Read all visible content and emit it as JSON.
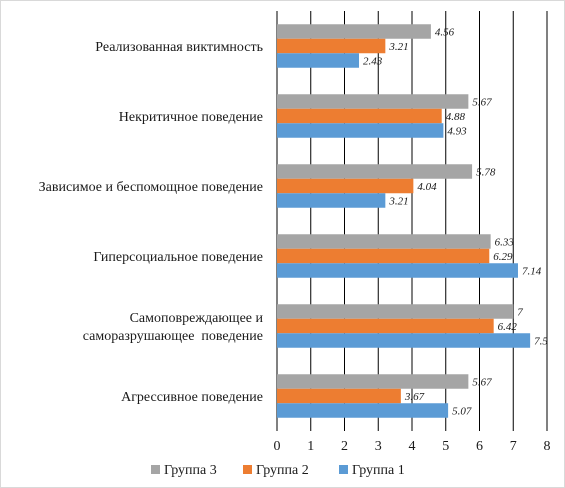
{
  "chart_data": {
    "type": "bar",
    "orientation": "horizontal",
    "title": "",
    "xlabel": "",
    "ylabel": "",
    "xlim": [
      0,
      8
    ],
    "xticks": [
      0,
      1,
      2,
      3,
      4,
      5,
      6,
      7,
      8
    ],
    "grid": "vertical-major",
    "legend_position": "bottom",
    "categories": [
      [
        "Реализованная виктимность"
      ],
      [
        "Некритичное поведение"
      ],
      [
        "Зависимое и беспомощное поведение"
      ],
      [
        "Гиперсоциальное поведение"
      ],
      [
        "Самоповреждающее и",
        "саморазрушающее  поведение"
      ],
      [
        "Агрессивное поведение"
      ]
    ],
    "series": [
      {
        "name": "Группа 3",
        "color": "#a5a5a5",
        "values": [
          4.56,
          5.67,
          5.78,
          6.33,
          7,
          5.67
        ],
        "labels": [
          "4.56",
          "5.67",
          "5.78",
          "6.33",
          "7",
          "5.67"
        ]
      },
      {
        "name": "Группа 2",
        "color": "#ed7d31",
        "values": [
          3.21,
          4.88,
          4.04,
          6.29,
          6.42,
          3.67
        ],
        "labels": [
          "3.21",
          "4.88",
          "4.04",
          "6.29",
          "6.42",
          "3.67"
        ]
      },
      {
        "name": "Группа 1",
        "color": "#5b9bd5",
        "values": [
          2.43,
          4.93,
          3.21,
          7.14,
          7.5,
          5.07
        ],
        "labels": [
          "2.43",
          "4.93",
          "3.21",
          "7.14",
          "7.5",
          "5.07"
        ]
      }
    ]
  }
}
